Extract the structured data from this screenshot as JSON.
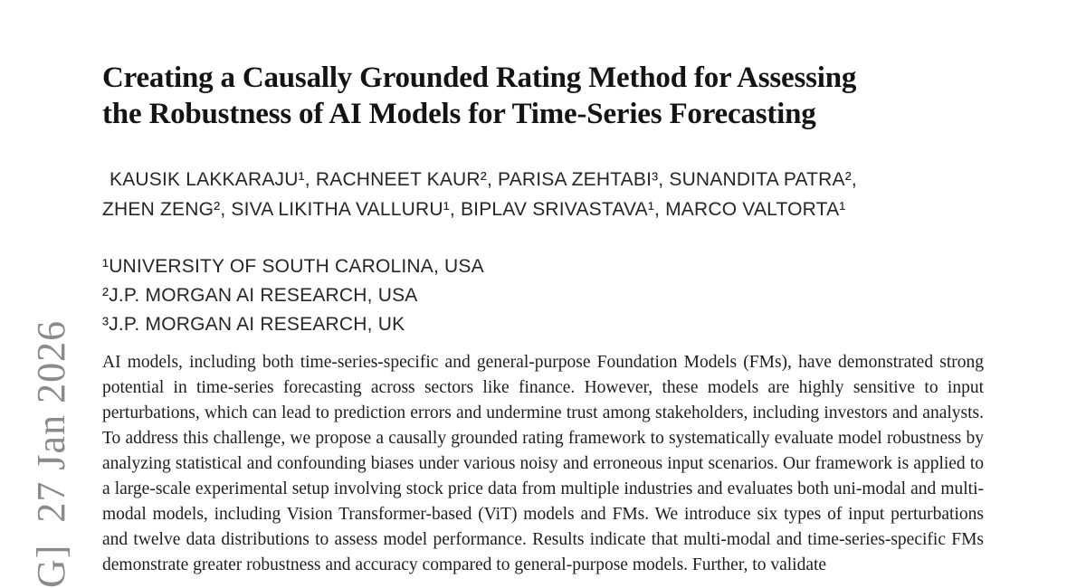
{
  "watermark": {
    "visible_text": "G]  27 Jan 2026"
  },
  "paper": {
    "title": {
      "line1": "Creating a Causally Grounded Rating Method for Assessing",
      "line2": "the Robustness of AI Models for Time-Series Forecasting"
    },
    "authors": {
      "line1": "KAUSIK LAKKARAJU¹, RACHNEET KAUR², PARISA ZEHTABI³, SUNANDITA PATRA²,",
      "line2": "ZHEN ZENG², SIVA LIKITHA VALLURU¹, BIPLAV SRIVASTAVA¹, MARCO VALTORTA¹"
    },
    "affiliations": [
      "¹UNIVERSITY OF SOUTH CAROLINA, USA",
      "²J.P. MORGAN AI RESEARCH, USA",
      "³J.P. MORGAN AI RESEARCH, UK"
    ],
    "abstract": "AI models, including both time-series-specific and general-purpose Foundation Models (FMs), have demonstrated strong potential in time-series forecasting across sectors like finance. However, these models are highly sensitive to input perturbations, which can lead to prediction errors and undermine trust among stakeholders, including investors and analysts. To address this challenge, we propose a causally grounded rating framework to systematically evaluate model robustness by analyzing statistical and confounding biases under various noisy and erroneous input scenarios. Our framework is applied to a large-scale experimental setup involving stock price data from multiple industries and evaluates both uni-modal and multi-modal models, including Vision Transformer-based (ViT) models and FMs. We introduce six types of input perturbations and twelve data distributions to assess model performance. Results indicate that multi-modal and time-series-specific FMs demonstrate greater robustness and accuracy compared to general-purpose models. Further, to validate"
  },
  "colors": {
    "background": "#ffffff",
    "body_text": "#1e1e1e",
    "watermark_gray": "#8b8b8b"
  }
}
